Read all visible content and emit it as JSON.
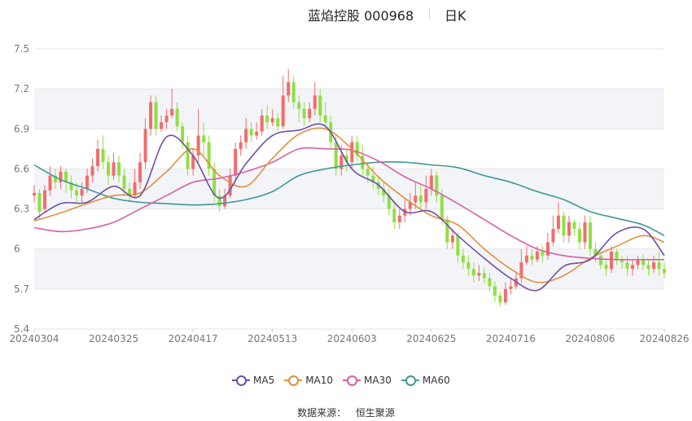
{
  "header": {
    "title": "蓝焰控股 000968",
    "period": "日K"
  },
  "source": {
    "label": "数据来源：",
    "name": "恒生聚源"
  },
  "colors": {
    "up": "#f26c6c",
    "down": "#8fe040",
    "grid": "#e6e6e6",
    "band": "#f3f4f8",
    "axis_text": "#777777",
    "ma5": "#6e4ea8",
    "ma10": "#e0913d",
    "ma30": "#d95fa6",
    "ma60": "#3f9796"
  },
  "chart_data": {
    "type": "candlestick",
    "ylim": [
      5.4,
      7.5
    ],
    "yticks": [
      5.4,
      5.7,
      6,
      6.3,
      6.6,
      6.9,
      7.2,
      7.5
    ],
    "xtick_labels": [
      "20240304",
      "20240325",
      "20240417",
      "20240513",
      "20240603",
      "20240625",
      "20240716",
      "20240806",
      "20240826"
    ],
    "xtick_index": [
      0,
      15,
      30,
      45,
      60,
      75,
      90,
      105,
      119
    ],
    "n_days": 120,
    "legend": [
      "MA5",
      "MA10",
      "MA30",
      "MA60"
    ],
    "candles": [
      [
        6.4,
        6.42,
        6.48,
        6.35
      ],
      [
        6.42,
        6.28,
        6.45,
        6.22
      ],
      [
        6.3,
        6.44,
        6.48,
        6.27
      ],
      [
        6.44,
        6.55,
        6.62,
        6.4
      ],
      [
        6.55,
        6.5,
        6.6,
        6.45
      ],
      [
        6.5,
        6.58,
        6.62,
        6.45
      ],
      [
        6.58,
        6.5,
        6.6,
        6.42
      ],
      [
        6.5,
        6.44,
        6.55,
        6.38
      ],
      [
        6.44,
        6.4,
        6.5,
        6.35
      ],
      [
        6.4,
        6.45,
        6.5,
        6.35
      ],
      [
        6.45,
        6.55,
        6.6,
        6.42
      ],
      [
        6.55,
        6.62,
        6.68,
        6.5
      ],
      [
        6.62,
        6.75,
        6.82,
        6.58
      ],
      [
        6.75,
        6.65,
        6.85,
        6.6
      ],
      [
        6.65,
        6.55,
        6.7,
        6.48
      ],
      [
        6.55,
        6.65,
        6.72,
        6.52
      ],
      [
        6.65,
        6.55,
        6.7,
        6.5
      ],
      [
        6.55,
        6.45,
        6.6,
        6.4
      ],
      [
        6.45,
        6.4,
        6.5,
        6.35
      ],
      [
        6.4,
        6.5,
        6.6,
        6.38
      ],
      [
        6.5,
        6.65,
        6.72,
        6.45
      ],
      [
        6.65,
        6.9,
        6.98,
        6.6
      ],
      [
        6.9,
        7.1,
        7.15,
        6.85
      ],
      [
        7.1,
        6.9,
        7.15,
        6.85
      ],
      [
        6.9,
        6.95,
        7.0,
        6.88
      ],
      [
        6.95,
        7.0,
        7.05,
        6.9
      ],
      [
        7.0,
        7.05,
        7.2,
        6.98
      ],
      [
        7.05,
        6.92,
        7.1,
        6.88
      ],
      [
        6.92,
        6.8,
        6.95,
        6.75
      ],
      [
        6.8,
        6.6,
        6.85,
        6.55
      ],
      [
        6.6,
        6.7,
        6.75,
        6.55
      ],
      [
        6.7,
        6.85,
        7.05,
        6.65
      ],
      [
        6.85,
        6.8,
        6.95,
        6.7
      ],
      [
        6.8,
        6.6,
        6.85,
        6.55
      ],
      [
        6.6,
        6.4,
        6.65,
        6.35
      ],
      [
        6.4,
        6.32,
        6.45,
        6.28
      ],
      [
        6.32,
        6.4,
        6.45,
        6.3
      ],
      [
        6.4,
        6.55,
        6.6,
        6.38
      ],
      [
        6.55,
        6.75,
        6.8,
        6.5
      ],
      [
        6.75,
        6.8,
        6.85,
        6.7
      ],
      [
        6.8,
        6.9,
        6.98,
        6.75
      ],
      [
        6.9,
        6.85,
        6.95,
        6.8
      ],
      [
        6.85,
        6.88,
        6.95,
        6.82
      ],
      [
        6.88,
        7.0,
        7.05,
        6.85
      ],
      [
        7.0,
        6.95,
        7.08,
        6.9
      ],
      [
        6.95,
        6.98,
        7.05,
        6.92
      ],
      [
        6.98,
        6.92,
        7.02,
        6.88
      ],
      [
        6.92,
        7.15,
        7.3,
        6.9
      ],
      [
        7.15,
        7.25,
        7.35,
        7.1
      ],
      [
        7.25,
        7.1,
        7.3,
        7.05
      ],
      [
        7.1,
        7.05,
        7.15,
        6.95
      ],
      [
        7.05,
        6.98,
        7.1,
        6.92
      ],
      [
        6.98,
        7.05,
        7.1,
        6.95
      ],
      [
        7.05,
        7.15,
        7.25,
        7.0
      ],
      [
        7.15,
        7.0,
        7.2,
        6.95
      ],
      [
        7.0,
        6.95,
        7.1,
        6.9
      ],
      [
        6.95,
        6.8,
        7.0,
        6.75
      ],
      [
        6.8,
        6.6,
        6.85,
        6.55
      ],
      [
        6.6,
        6.7,
        6.78,
        6.55
      ],
      [
        6.7,
        6.65,
        6.75,
        6.58
      ],
      [
        6.65,
        6.8,
        6.85,
        6.6
      ],
      [
        6.8,
        6.7,
        6.85,
        6.65
      ],
      [
        6.7,
        6.6,
        6.78,
        6.55
      ],
      [
        6.6,
        6.55,
        6.65,
        6.5
      ],
      [
        6.55,
        6.5,
        6.62,
        6.45
      ],
      [
        6.5,
        6.45,
        6.55,
        6.4
      ],
      [
        6.45,
        6.4,
        6.5,
        6.35
      ],
      [
        6.4,
        6.3,
        6.45,
        6.25
      ],
      [
        6.3,
        6.2,
        6.35,
        6.15
      ],
      [
        6.2,
        6.25,
        6.3,
        6.15
      ],
      [
        6.25,
        6.3,
        6.38,
        6.2
      ],
      [
        6.3,
        6.35,
        6.42,
        6.25
      ],
      [
        6.35,
        6.4,
        6.5,
        6.3
      ],
      [
        6.4,
        6.35,
        6.48,
        6.3
      ],
      [
        6.35,
        6.45,
        6.55,
        6.3
      ],
      [
        6.45,
        6.55,
        6.6,
        6.4
      ],
      [
        6.55,
        6.4,
        6.58,
        6.35
      ],
      [
        6.4,
        6.22,
        6.45,
        6.18
      ],
      [
        6.22,
        6.05,
        6.25,
        6.0
      ],
      [
        6.05,
        6.1,
        6.15,
        6.0
      ],
      [
        6.1,
        5.95,
        6.12,
        5.9
      ],
      [
        5.95,
        5.9,
        6.0,
        5.85
      ],
      [
        5.9,
        5.85,
        5.95,
        5.8
      ],
      [
        5.85,
        5.8,
        5.9,
        5.75
      ],
      [
        5.8,
        5.82,
        5.88,
        5.76
      ],
      [
        5.82,
        5.78,
        5.86,
        5.74
      ],
      [
        5.78,
        5.72,
        5.82,
        5.68
      ],
      [
        5.72,
        5.65,
        5.76,
        5.6
      ],
      [
        5.65,
        5.6,
        5.68,
        5.57
      ],
      [
        5.6,
        5.7,
        5.75,
        5.58
      ],
      [
        5.7,
        5.72,
        5.78,
        5.66
      ],
      [
        5.72,
        5.78,
        5.82,
        5.7
      ],
      [
        5.78,
        5.9,
        6.0,
        5.75
      ],
      [
        5.9,
        5.95,
        6.02,
        5.88
      ],
      [
        5.95,
        5.92,
        6.0,
        5.88
      ],
      [
        5.92,
        5.98,
        6.02,
        5.9
      ],
      [
        5.98,
        5.95,
        6.02,
        5.9
      ],
      [
        5.95,
        6.05,
        6.12,
        5.92
      ],
      [
        6.05,
        6.15,
        6.25,
        6.02
      ],
      [
        6.15,
        6.25,
        6.35,
        6.12
      ],
      [
        6.25,
        6.1,
        6.28,
        6.05
      ],
      [
        6.1,
        6.2,
        6.25,
        6.05
      ],
      [
        6.2,
        6.15,
        6.22,
        6.1
      ],
      [
        6.15,
        6.05,
        6.2,
        6.0
      ],
      [
        6.05,
        6.2,
        6.25,
        6.0
      ],
      [
        6.2,
        6.0,
        6.25,
        5.95
      ],
      [
        6.0,
        5.95,
        6.05,
        5.9
      ],
      [
        5.95,
        5.88,
        5.98,
        5.85
      ],
      [
        5.88,
        5.85,
        5.92,
        5.8
      ],
      [
        5.85,
        5.98,
        6.02,
        5.82
      ],
      [
        5.98,
        5.92,
        6.0,
        5.88
      ],
      [
        5.92,
        5.9,
        5.95,
        5.85
      ],
      [
        5.9,
        5.85,
        5.95,
        5.8
      ],
      [
        5.85,
        5.88,
        5.92,
        5.8
      ],
      [
        5.88,
        5.92,
        5.95,
        5.85
      ],
      [
        5.92,
        5.88,
        5.96,
        5.84
      ],
      [
        5.88,
        5.85,
        5.92,
        5.8
      ],
      [
        5.85,
        5.9,
        5.95,
        5.82
      ],
      [
        5.9,
        5.85,
        5.98,
        5.8
      ],
      [
        5.85,
        5.82,
        5.9,
        5.78
      ]
    ],
    "ma": {
      "MA5": {
        "x": [
          0,
          5,
          10,
          15,
          20,
          25,
          30,
          35,
          40,
          45,
          50,
          55,
          60,
          65,
          70,
          75,
          80,
          85,
          90,
          95,
          100,
          105,
          110,
          115,
          119
        ],
        "y": [
          6.22,
          6.34,
          6.35,
          6.47,
          6.4,
          6.84,
          6.7,
          6.38,
          6.64,
          6.85,
          6.89,
          6.92,
          6.6,
          6.48,
          6.28,
          6.28,
          6.1,
          5.93,
          5.78,
          5.69,
          5.87,
          5.92,
          6.12,
          6.15,
          5.95
        ]
      },
      "MA10": {
        "x": [
          0,
          5,
          10,
          15,
          20,
          25,
          30,
          35,
          40,
          45,
          50,
          55,
          60,
          65,
          70,
          75,
          80,
          85,
          90,
          95,
          100,
          105,
          110,
          115,
          119
        ],
        "y": [
          6.21,
          6.27,
          6.34,
          6.4,
          6.42,
          6.58,
          6.75,
          6.55,
          6.47,
          6.68,
          6.86,
          6.9,
          6.75,
          6.54,
          6.38,
          6.25,
          6.18,
          6.0,
          5.85,
          5.75,
          5.8,
          5.93,
          6.02,
          6.1,
          6.05
        ]
      },
      "MA30": {
        "x": [
          0,
          5,
          10,
          15,
          20,
          25,
          30,
          35,
          40,
          45,
          50,
          55,
          60,
          65,
          70,
          75,
          80,
          85,
          90,
          95,
          100,
          105,
          110,
          115,
          119
        ],
        "y": [
          6.16,
          6.13,
          6.15,
          6.2,
          6.3,
          6.4,
          6.5,
          6.53,
          6.58,
          6.65,
          6.75,
          6.75,
          6.74,
          6.66,
          6.54,
          6.45,
          6.34,
          6.22,
          6.1,
          6.0,
          5.95,
          5.93,
          5.92,
          5.92,
          5.92
        ]
      },
      "MA60": {
        "x": [
          0,
          5,
          10,
          15,
          20,
          25,
          30,
          35,
          40,
          45,
          50,
          55,
          60,
          65,
          70,
          75,
          80,
          85,
          90,
          95,
          100,
          105,
          110,
          115,
          119
        ],
        "y": [
          6.63,
          6.52,
          6.45,
          6.38,
          6.35,
          6.34,
          6.33,
          6.34,
          6.37,
          6.43,
          6.55,
          6.6,
          6.63,
          6.65,
          6.65,
          6.63,
          6.61,
          6.55,
          6.5,
          6.43,
          6.37,
          6.28,
          6.23,
          6.18,
          6.1
        ]
      }
    }
  }
}
